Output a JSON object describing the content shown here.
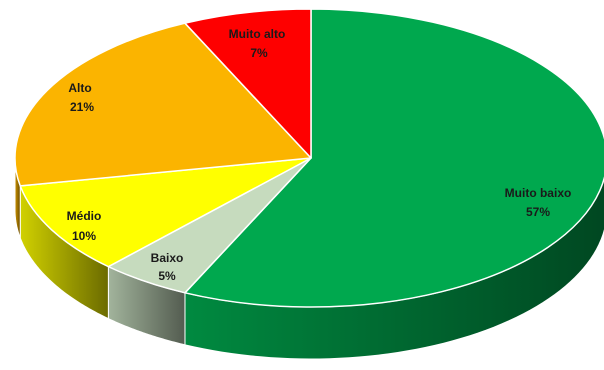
{
  "chart_data": {
    "type": "pie",
    "style": "3d",
    "slices": [
      {
        "label": "Muito baixo",
        "value": 57,
        "value_label": "57%",
        "color": "#00a84e"
      },
      {
        "label": "Baixo",
        "value": 5,
        "value_label": "5%",
        "color": "#c6dbbe"
      },
      {
        "label": "Médio",
        "value": 10,
        "value_label": "10%",
        "color": "#ffff00"
      },
      {
        "label": "Alto",
        "value": 21,
        "value_label": "21%",
        "color": "#fbb400"
      },
      {
        "label": "Muito alto",
        "value": 7,
        "value_label": "7%",
        "color": "#fe0000"
      }
    ],
    "legend": "none",
    "title": ""
  }
}
